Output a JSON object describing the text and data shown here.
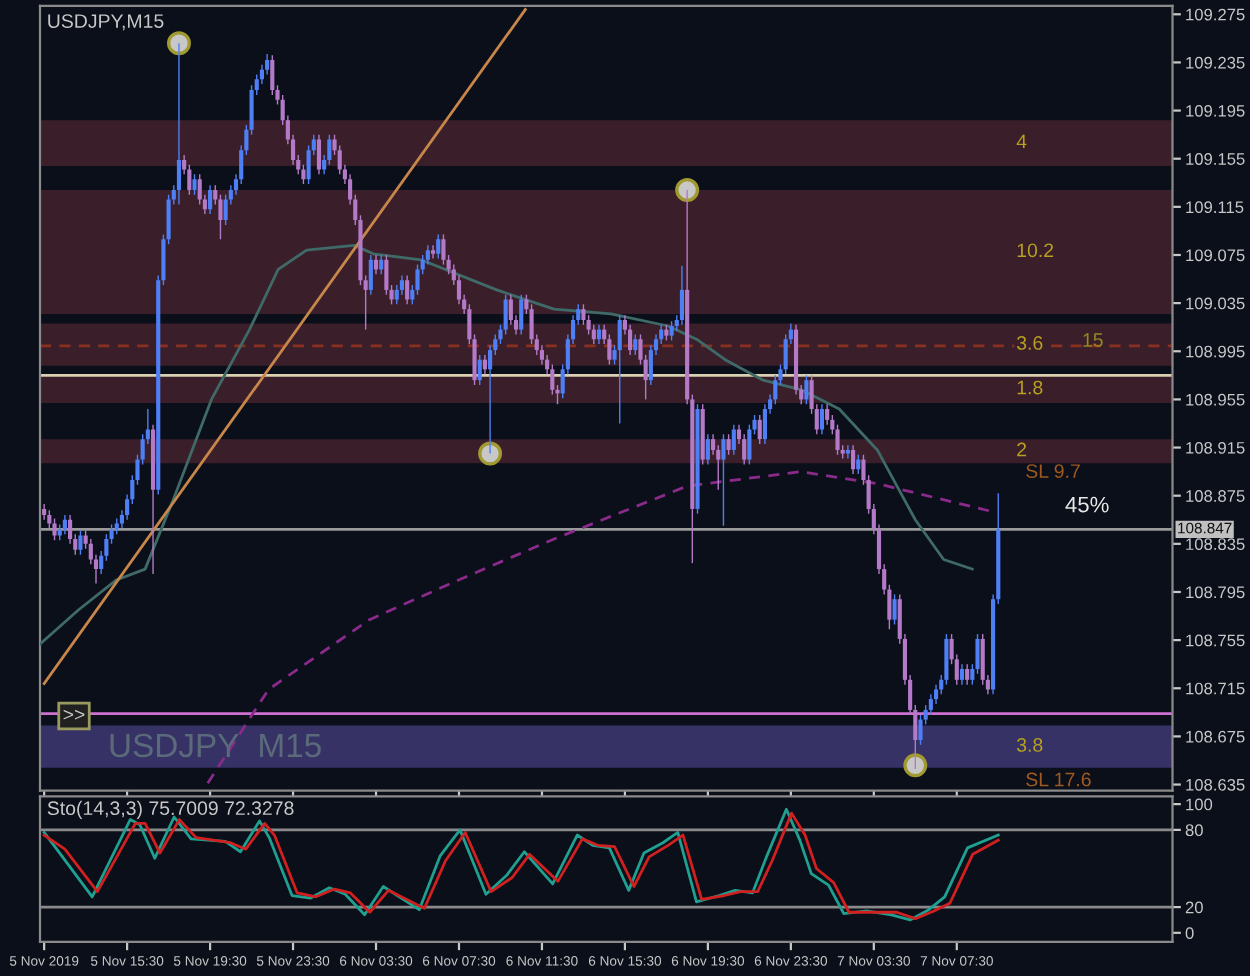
{
  "chart_data": [
    {
      "type": "candlestick",
      "title": "USDJPY,M15",
      "x": [
        "2019-11-05T11:30",
        "2019-11-05T11:45",
        "2019-11-05T12:00",
        "2019-11-05T12:15",
        "2019-11-05T12:30",
        "2019-11-05T12:45",
        "2019-11-05T13:00",
        "2019-11-05T13:15",
        "2019-11-05T13:30",
        "2019-11-05T13:45",
        "2019-11-05T14:00",
        "2019-11-05T14:15",
        "2019-11-05T14:30",
        "2019-11-05T14:45",
        "2019-11-05T15:00",
        "2019-11-05T15:15",
        "2019-11-05T15:30",
        "2019-11-05T15:45",
        "2019-11-05T16:00",
        "2019-11-05T16:15",
        "2019-11-05T16:30",
        "2019-11-05T16:45",
        "2019-11-05T17:00",
        "2019-11-05T17:15",
        "2019-11-05T17:30",
        "2019-11-05T17:45",
        "2019-11-05T18:00",
        "2019-11-05T18:15",
        "2019-11-05T18:30",
        "2019-11-05T18:45",
        "2019-11-05T19:00",
        "2019-11-05T19:15",
        "2019-11-05T19:30",
        "2019-11-05T19:45",
        "2019-11-05T20:00",
        "2019-11-05T20:15",
        "2019-11-05T20:30",
        "2019-11-05T20:45",
        "2019-11-05T21:00",
        "2019-11-05T21:15",
        "2019-11-05T21:30",
        "2019-11-05T21:45",
        "2019-11-05T22:00",
        "2019-11-05T22:15",
        "2019-11-05T22:30",
        "2019-11-05T22:45",
        "2019-11-05T23:00",
        "2019-11-05T23:15",
        "2019-11-05T23:30",
        "2019-11-05T23:45",
        "2019-11-06T00:00",
        "2019-11-06T00:15",
        "2019-11-06T00:30",
        "2019-11-06T00:45",
        "2019-11-06T01:00",
        "2019-11-06T01:15",
        "2019-11-06T01:30",
        "2019-11-06T01:45",
        "2019-11-06T02:00",
        "2019-11-06T02:15",
        "2019-11-06T02:30",
        "2019-11-06T02:45",
        "2019-11-06T03:00",
        "2019-11-06T03:15",
        "2019-11-06T03:30",
        "2019-11-06T03:45",
        "2019-11-06T04:00",
        "2019-11-06T04:15",
        "2019-11-06T04:30",
        "2019-11-06T04:45",
        "2019-11-06T05:00",
        "2019-11-06T05:15",
        "2019-11-06T05:30",
        "2019-11-06T05:45",
        "2019-11-06T06:00",
        "2019-11-06T06:15",
        "2019-11-06T06:30",
        "2019-11-06T06:45",
        "2019-11-06T07:00",
        "2019-11-06T07:15",
        "2019-11-06T07:30",
        "2019-11-06T07:45",
        "2019-11-06T08:00",
        "2019-11-06T08:15",
        "2019-11-06T08:30",
        "2019-11-06T08:45",
        "2019-11-06T09:00",
        "2019-11-06T09:15",
        "2019-11-06T09:30",
        "2019-11-06T09:45",
        "2019-11-06T10:00",
        "2019-11-06T10:15",
        "2019-11-06T10:30",
        "2019-11-06T10:45",
        "2019-11-06T11:00",
        "2019-11-06T11:15",
        "2019-11-06T11:30",
        "2019-11-06T11:45",
        "2019-11-06T12:00",
        "2019-11-06T12:15",
        "2019-11-06T12:30",
        "2019-11-06T12:45",
        "2019-11-06T13:00",
        "2019-11-06T13:15",
        "2019-11-06T13:30",
        "2019-11-06T13:45",
        "2019-11-06T14:00",
        "2019-11-06T14:15",
        "2019-11-06T14:30",
        "2019-11-06T14:45",
        "2019-11-06T15:00",
        "2019-11-06T15:15",
        "2019-11-06T15:30",
        "2019-11-06T15:45",
        "2019-11-06T16:00",
        "2019-11-06T16:15",
        "2019-11-06T16:30",
        "2019-11-06T16:45",
        "2019-11-06T17:00",
        "2019-11-06T17:15",
        "2019-11-06T17:30",
        "2019-11-06T17:45",
        "2019-11-06T18:00",
        "2019-11-06T18:15",
        "2019-11-06T18:30",
        "2019-11-06T18:45",
        "2019-11-06T19:00",
        "2019-11-06T19:15",
        "2019-11-06T19:30",
        "2019-11-06T19:45",
        "2019-11-06T20:00",
        "2019-11-06T20:15",
        "2019-11-06T20:30",
        "2019-11-06T20:45",
        "2019-11-06T21:00",
        "2019-11-06T21:15",
        "2019-11-06T21:30",
        "2019-11-06T21:45",
        "2019-11-06T22:00",
        "2019-11-06T22:15",
        "2019-11-06T22:30",
        "2019-11-06T22:45",
        "2019-11-06T23:00",
        "2019-11-06T23:15",
        "2019-11-06T23:30",
        "2019-11-06T23:45",
        "2019-11-07T00:00",
        "2019-11-07T00:15",
        "2019-11-07T00:30",
        "2019-11-07T00:45",
        "2019-11-07T01:00",
        "2019-11-07T01:15",
        "2019-11-07T01:30",
        "2019-11-07T01:45",
        "2019-11-07T02:00",
        "2019-11-07T02:15",
        "2019-11-07T02:30",
        "2019-11-07T02:45",
        "2019-11-07T03:00",
        "2019-11-07T03:15",
        "2019-11-07T03:30",
        "2019-11-07T03:45",
        "2019-11-07T04:00",
        "2019-11-07T04:15",
        "2019-11-07T04:30",
        "2019-11-07T04:45",
        "2019-11-07T05:00",
        "2019-11-07T05:15",
        "2019-11-07T05:30",
        "2019-11-07T05:45",
        "2019-11-07T06:00",
        "2019-11-07T06:15",
        "2019-11-07T06:30",
        "2019-11-07T06:45",
        "2019-11-07T07:00",
        "2019-11-07T07:15",
        "2019-11-07T07:30",
        "2019-11-07T07:45",
        "2019-11-07T08:00",
        "2019-11-07T08:15",
        "2019-11-07T08:30",
        "2019-11-07T08:45",
        "2019-11-07T09:00",
        "2019-11-07T09:15",
        "2019-11-07T09:30"
      ],
      "colors": [
        "#b47ac8",
        "#b47ac8",
        "#b47ac8",
        "#4f7ff5",
        "#4f7ff5",
        "#b47ac8",
        "#b47ac8",
        "#4f7ff5",
        "#b47ac8",
        "#b47ac8",
        "#b47ac8",
        "#4f7ff5",
        "#4f7ff5",
        "#4f7ff5",
        "#4f7ff5",
        "#4f7ff5",
        "#4f7ff5",
        "#4f7ff5",
        "#4f7ff5",
        "#4f7ff5",
        "#4f7ff5",
        "#b47ac8",
        "#4f7ff5",
        "#4f7ff5",
        "#4f7ff5",
        "#4f7ff5",
        "#4f7ff5",
        "#b47ac8",
        "#b47ac8",
        "#4f7ff5",
        "#b47ac8",
        "#b47ac8",
        "#4f7ff5",
        "#b47ac8",
        "#b47ac8",
        "#4f7ff5",
        "#4f7ff5",
        "#4f7ff5",
        "#4f7ff5",
        "#4f7ff5",
        "#4f7ff5",
        "#4f7ff5",
        "#4f7ff5",
        "#4f7ff5",
        "#b47ac8",
        "#b47ac8",
        "#b47ac8",
        "#b47ac8",
        "#b47ac8",
        "#b47ac8",
        "#b47ac8",
        "#4f7ff5",
        "#4f7ff5",
        "#b47ac8",
        "#4f7ff5",
        "#4f7ff5",
        "#b47ac8",
        "#b47ac8",
        "#b47ac8",
        "#b47ac8",
        "#b47ac8",
        "#b47ac8",
        "#b47ac8",
        "#4f7ff5",
        "#b47ac8",
        "#4f7ff5",
        "#b47ac8",
        "#b47ac8",
        "#4f7ff5",
        "#4f7ff5",
        "#b47ac8",
        "#4f7ff5",
        "#4f7ff5",
        "#4f7ff5",
        "#4f7ff5",
        "#b47ac8",
        "#4f7ff5",
        "#b47ac8",
        "#b47ac8",
        "#b47ac8",
        "#b47ac8",
        "#b47ac8",
        "#b47ac8",
        "#b47ac8",
        "#4f7ff5",
        "#b47ac8",
        "#4f7ff5",
        "#4f7ff5",
        "#4f7ff5",
        "#4f7ff5",
        "#b47ac8",
        "#b47ac8",
        "#4f7ff5",
        "#b47ac8",
        "#b47ac8",
        "#b47ac8",
        "#b47ac8",
        "#b47ac8",
        "#b47ac8",
        "#b47ac8",
        "#4f7ff5",
        "#4f7ff5",
        "#4f7ff5",
        "#4f7ff5",
        "#b47ac8",
        "#b47ac8",
        "#b47ac8",
        "#4f7ff5",
        "#b47ac8",
        "#b47ac8",
        "#4f7ff5",
        "#4f7ff5",
        "#b47ac8",
        "#b47ac8",
        "#4f7ff5",
        "#b47ac8",
        "#b47ac8",
        "#4f7ff5",
        "#4f7ff5",
        "#4f7ff5",
        "#b47ac8",
        "#4f7ff5",
        "#4f7ff5",
        "#4f7ff5",
        "#b47ac8",
        "#b47ac8",
        "#4f7ff5",
        "#b47ac8",
        "#4f7ff5",
        "#b47ac8",
        "#b47ac8",
        "#4f7ff5",
        "#b47ac8",
        "#4f7ff5",
        "#b47ac8",
        "#b47ac8",
        "#4f7ff5",
        "#4f7ff5",
        "#b47ac8",
        "#4f7ff5",
        "#4f7ff5",
        "#4f7ff5",
        "#4f7ff5",
        "#4f7ff5",
        "#4f7ff5",
        "#b47ac8",
        "#b47ac8",
        "#4f7ff5",
        "#b47ac8",
        "#b47ac8",
        "#4f7ff5",
        "#b47ac8",
        "#b47ac8",
        "#b47ac8",
        "#b47ac8",
        "#4f7ff5",
        "#b47ac8",
        "#4f7ff5",
        "#b47ac8",
        "#b47ac8",
        "#b47ac8",
        "#b47ac8",
        "#b47ac8",
        "#b47ac8",
        "#4f7ff5",
        "#b47ac8",
        "#b47ac8",
        "#b47ac8",
        "#b47ac8",
        "#4f7ff5",
        "#4f7ff5",
        "#4f7ff5",
        "#4f7ff5",
        "#4f7ff5",
        "#4f7ff5",
        "#b47ac8",
        "#b47ac8",
        "#4f7ff5",
        "#b47ac8",
        "#4f7ff5",
        "#4f7ff5",
        "#b47ac8",
        "#b47ac8",
        "#4f7ff5",
        "#4f7ff5"
      ],
      "ohlc": [
        [
          108.864,
          108.868,
          108.855,
          108.859
        ],
        [
          108.859,
          108.863,
          108.848,
          108.852
        ],
        [
          108.852,
          108.856,
          108.838,
          108.842
        ],
        [
          108.842,
          108.851,
          108.838,
          108.847
        ],
        [
          108.847,
          108.859,
          108.843,
          108.855
        ],
        [
          108.855,
          108.859,
          108.835,
          108.839
        ],
        [
          108.839,
          108.843,
          108.826,
          108.83
        ],
        [
          108.83,
          108.846,
          108.826,
          108.842
        ],
        [
          108.842,
          108.846,
          108.831,
          108.835
        ],
        [
          108.835,
          108.839,
          108.818,
          108.822
        ],
        [
          108.822,
          108.826,
          108.802,
          108.814
        ],
        [
          108.814,
          108.829,
          108.81,
          108.825
        ],
        [
          108.825,
          108.843,
          108.821,
          108.839
        ],
        [
          108.839,
          108.851,
          108.835,
          108.847
        ],
        [
          108.847,
          108.856,
          108.843,
          108.852
        ],
        [
          108.852,
          108.863,
          108.848,
          108.859
        ],
        [
          108.859,
          108.876,
          108.855,
          108.872
        ],
        [
          108.872,
          108.892,
          108.868,
          108.888
        ],
        [
          108.888,
          108.909,
          108.884,
          108.905
        ],
        [
          108.905,
          108.926,
          108.901,
          108.922
        ],
        [
          108.922,
          108.947,
          108.918,
          108.93
        ],
        [
          108.93,
          108.934,
          108.81,
          108.88
        ],
        [
          108.88,
          109.058,
          108.876,
          109.054
        ],
        [
          109.054,
          109.092,
          109.05,
          109.088
        ],
        [
          109.088,
          109.125,
          109.084,
          109.121
        ],
        [
          109.121,
          109.133,
          109.117,
          109.129
        ],
        [
          109.129,
          109.251,
          109.117,
          109.154
        ],
        [
          109.154,
          109.158,
          109.142,
          109.146
        ],
        [
          109.146,
          109.15,
          109.125,
          109.129
        ],
        [
          109.129,
          109.142,
          109.125,
          109.138
        ],
        [
          109.138,
          109.142,
          109.117,
          109.121
        ],
        [
          109.121,
          109.125,
          109.109,
          109.113
        ],
        [
          109.113,
          109.133,
          109.109,
          109.129
        ],
        [
          109.129,
          109.133,
          109.117,
          109.121
        ],
        [
          109.121,
          109.125,
          109.088,
          109.104
        ],
        [
          109.104,
          109.125,
          109.1,
          109.121
        ],
        [
          109.121,
          109.133,
          109.117,
          109.129
        ],
        [
          109.129,
          109.142,
          109.125,
          109.138
        ],
        [
          109.138,
          109.166,
          109.134,
          109.162
        ],
        [
          109.162,
          109.183,
          109.158,
          109.179
        ],
        [
          109.179,
          109.216,
          109.175,
          109.212
        ],
        [
          109.212,
          109.225,
          109.208,
          109.221
        ],
        [
          109.221,
          109.233,
          109.217,
          109.229
        ],
        [
          109.229,
          109.242,
          109.225,
          109.237
        ],
        [
          109.237,
          109.241,
          109.208,
          109.212
        ],
        [
          109.212,
          109.216,
          109.2,
          109.204
        ],
        [
          109.204,
          109.208,
          109.183,
          109.187
        ],
        [
          109.187,
          109.191,
          109.167,
          109.171
        ],
        [
          109.171,
          109.175,
          109.15,
          109.154
        ],
        [
          109.154,
          109.158,
          109.142,
          109.146
        ],
        [
          109.146,
          109.15,
          109.134,
          109.138
        ],
        [
          109.138,
          109.166,
          109.134,
          109.162
        ],
        [
          109.162,
          109.175,
          109.158,
          109.171
        ],
        [
          109.171,
          109.175,
          109.142,
          109.146
        ],
        [
          109.146,
          109.158,
          109.142,
          109.154
        ],
        [
          109.154,
          109.175,
          109.15,
          109.171
        ],
        [
          109.171,
          109.175,
          109.158,
          109.162
        ],
        [
          109.162,
          109.166,
          109.142,
          109.146
        ],
        [
          109.146,
          109.15,
          109.134,
          109.138
        ],
        [
          109.138,
          109.142,
          109.117,
          109.121
        ],
        [
          109.121,
          109.125,
          109.1,
          109.104
        ],
        [
          109.104,
          109.108,
          109.05,
          109.054
        ],
        [
          109.054,
          109.058,
          109.013,
          109.046
        ],
        [
          109.046,
          109.075,
          109.042,
          109.071
        ],
        [
          109.071,
          109.075,
          109.059,
          109.063
        ],
        [
          109.063,
          109.075,
          109.059,
          109.071
        ],
        [
          109.071,
          109.075,
          109.042,
          109.046
        ],
        [
          109.046,
          109.05,
          109.034,
          109.038
        ],
        [
          109.038,
          109.05,
          109.034,
          109.046
        ],
        [
          109.046,
          109.058,
          109.042,
          109.054
        ],
        [
          109.054,
          109.058,
          109.034,
          109.038
        ],
        [
          109.038,
          109.05,
          109.034,
          109.046
        ],
        [
          109.046,
          109.067,
          109.042,
          109.063
        ],
        [
          109.063,
          109.075,
          109.059,
          109.071
        ],
        [
          109.071,
          109.083,
          109.067,
          109.079
        ],
        [
          109.079,
          109.083,
          109.072,
          109.076
        ],
        [
          109.076,
          109.092,
          109.072,
          109.088
        ],
        [
          109.088,
          109.092,
          109.067,
          109.071
        ],
        [
          109.071,
          109.075,
          109.059,
          109.063
        ],
        [
          109.063,
          109.067,
          109.05,
          109.054
        ],
        [
          109.054,
          109.058,
          109.034,
          109.038
        ],
        [
          109.038,
          109.042,
          109.026,
          109.03
        ],
        [
          109.03,
          109.034,
          109.001,
          109.005
        ],
        [
          109.005,
          109.009,
          108.967,
          108.971
        ],
        [
          108.971,
          108.992,
          108.967,
          108.988
        ],
        [
          108.988,
          108.992,
          108.976,
          108.98
        ],
        [
          108.98,
          109.0,
          108.91,
          108.996
        ],
        [
          108.996,
          109.009,
          108.992,
          109.005
        ],
        [
          109.005,
          109.017,
          109.001,
          109.013
        ],
        [
          109.013,
          109.042,
          109.009,
          109.038
        ],
        [
          109.038,
          109.042,
          109.017,
          109.021
        ],
        [
          109.021,
          109.025,
          109.009,
          109.013
        ],
        [
          109.013,
          109.042,
          109.009,
          109.038
        ],
        [
          109.038,
          109.042,
          109.026,
          109.03
        ],
        [
          109.03,
          109.034,
          109.001,
          109.005
        ],
        [
          109.005,
          109.009,
          108.992,
          108.996
        ],
        [
          108.996,
          109.0,
          108.984,
          108.988
        ],
        [
          108.988,
          108.992,
          108.976,
          108.98
        ],
        [
          108.98,
          108.984,
          108.959,
          108.963
        ],
        [
          108.963,
          108.967,
          108.951,
          108.96
        ],
        [
          108.96,
          108.984,
          108.956,
          108.98
        ],
        [
          108.98,
          109.009,
          108.976,
          109.005
        ],
        [
          109.005,
          109.025,
          109.001,
          109.021
        ],
        [
          109.021,
          109.034,
          109.017,
          109.03
        ],
        [
          109.03,
          109.034,
          109.017,
          109.021
        ],
        [
          109.021,
          109.025,
          109.009,
          109.013
        ],
        [
          109.013,
          109.017,
          109.001,
          109.005
        ],
        [
          109.005,
          109.017,
          109.001,
          109.013
        ],
        [
          109.013,
          109.017,
          109.001,
          109.005
        ],
        [
          109.005,
          109.009,
          108.984,
          108.988
        ],
        [
          108.988,
          109.0,
          108.984,
          108.996
        ],
        [
          108.996,
          109.025,
          108.935,
          109.021
        ],
        [
          109.021,
          109.025,
          109.009,
          109.013
        ],
        [
          109.013,
          109.017,
          108.992,
          108.996
        ],
        [
          108.996,
          109.009,
          108.992,
          109.005
        ],
        [
          109.005,
          109.009,
          108.984,
          108.988
        ],
        [
          108.988,
          108.992,
          108.955,
          108.971
        ],
        [
          108.971,
          109.0,
          108.967,
          108.996
        ],
        [
          108.996,
          109.009,
          108.992,
          109.005
        ],
        [
          109.005,
          109.017,
          109.001,
          109.013
        ],
        [
          109.013,
          109.017,
          109.004,
          109.008
        ],
        [
          109.008,
          109.02,
          109.004,
          109.016
        ],
        [
          109.016,
          109.025,
          109.012,
          109.021
        ],
        [
          109.021,
          109.066,
          109.017,
          109.046
        ],
        [
          109.046,
          109.129,
          108.951,
          108.955
        ],
        [
          108.955,
          108.959,
          108.819,
          108.864
        ],
        [
          108.864,
          108.951,
          108.86,
          108.947
        ],
        [
          108.947,
          108.951,
          108.901,
          108.905
        ],
        [
          108.905,
          108.926,
          108.901,
          108.922
        ],
        [
          108.922,
          108.926,
          108.909,
          108.913
        ],
        [
          108.913,
          108.917,
          108.88,
          108.905
        ],
        [
          108.905,
          108.926,
          108.85,
          108.922
        ],
        [
          108.922,
          108.926,
          108.909,
          108.913
        ],
        [
          108.913,
          108.934,
          108.909,
          108.93
        ],
        [
          108.93,
          108.934,
          108.918,
          108.922
        ],
        [
          108.922,
          108.926,
          108.901,
          108.905
        ],
        [
          108.905,
          108.934,
          108.901,
          108.93
        ],
        [
          108.93,
          108.942,
          108.926,
          108.938
        ],
        [
          108.938,
          108.942,
          108.918,
          108.922
        ],
        [
          108.922,
          108.951,
          108.918,
          108.947
        ],
        [
          108.947,
          108.959,
          108.943,
          108.955
        ],
        [
          108.955,
          108.975,
          108.951,
          108.971
        ],
        [
          108.971,
          108.984,
          108.967,
          108.98
        ],
        [
          108.98,
          109.009,
          108.976,
          109.005
        ],
        [
          109.005,
          109.018,
          109.001,
          109.013
        ],
        [
          109.013,
          109.017,
          108.959,
          108.963
        ],
        [
          108.963,
          108.967,
          108.951,
          108.955
        ],
        [
          108.955,
          108.975,
          108.951,
          108.971
        ],
        [
          108.971,
          108.975,
          108.943,
          108.947
        ],
        [
          108.947,
          108.951,
          108.926,
          108.93
        ],
        [
          108.93,
          108.951,
          108.926,
          108.947
        ],
        [
          108.947,
          108.951,
          108.934,
          108.938
        ],
        [
          108.938,
          108.942,
          108.926,
          108.93
        ],
        [
          108.93,
          108.934,
          108.909,
          108.913
        ],
        [
          108.913,
          108.917,
          108.906,
          108.91
        ],
        [
          108.91,
          108.917,
          108.906,
          108.913
        ],
        [
          108.913,
          108.917,
          108.893,
          108.897
        ],
        [
          108.897,
          108.909,
          108.893,
          108.905
        ],
        [
          108.905,
          108.909,
          108.884,
          108.888
        ],
        [
          108.888,
          108.892,
          108.86,
          108.864
        ],
        [
          108.864,
          108.868,
          108.843,
          108.847
        ],
        [
          108.847,
          108.851,
          108.81,
          108.814
        ],
        [
          108.814,
          108.818,
          108.793,
          108.797
        ],
        [
          108.797,
          108.801,
          108.764,
          108.772
        ],
        [
          108.772,
          108.793,
          108.768,
          108.789
        ],
        [
          108.789,
          108.793,
          108.752,
          108.756
        ],
        [
          108.756,
          108.76,
          108.718,
          108.722
        ],
        [
          108.722,
          108.726,
          108.693,
          108.697
        ],
        [
          108.697,
          108.701,
          108.648,
          108.672
        ],
        [
          108.672,
          108.693,
          108.668,
          108.689
        ],
        [
          108.689,
          108.701,
          108.685,
          108.697
        ],
        [
          108.697,
          108.71,
          108.693,
          108.706
        ],
        [
          108.706,
          108.718,
          108.702,
          108.714
        ],
        [
          108.714,
          108.726,
          108.71,
          108.722
        ],
        [
          108.722,
          108.76,
          108.718,
          108.756
        ],
        [
          108.756,
          108.76,
          108.735,
          108.739
        ],
        [
          108.739,
          108.743,
          108.718,
          108.722
        ],
        [
          108.722,
          108.735,
          108.718,
          108.731
        ],
        [
          108.731,
          108.735,
          108.718,
          108.722
        ],
        [
          108.722,
          108.735,
          108.718,
          108.731
        ],
        [
          108.731,
          108.76,
          108.727,
          108.756
        ],
        [
          108.756,
          108.76,
          108.718,
          108.722
        ],
        [
          108.722,
          108.726,
          108.71,
          108.714
        ],
        [
          108.714,
          108.793,
          108.71,
          108.789
        ],
        [
          108.789,
          108.877,
          108.785,
          108.847
        ]
      ],
      "series": [
        {
          "type": "line",
          "color": "#3f6a68",
          "line_style": "solid",
          "x": [
            "2019-11-05T11:19",
            "2019-11-05T13:09",
            "2019-11-05T14:59",
            "2019-11-05T16:22",
            "2019-11-05T17:44",
            "2019-11-05T19:34",
            "2019-11-05T21:24",
            "2019-11-05T22:47",
            "2019-11-06T00:09",
            "2019-11-06T02:27",
            "2019-11-06T03:22",
            "2019-11-06T05:40",
            "2019-11-06T09:19",
            "2019-11-06T12:05",
            "2019-11-06T14:50",
            "2019-11-06T17:35",
            "2019-11-06T18:57",
            "2019-11-06T20:20",
            "2019-11-06T22:10",
            "2019-11-07T00:00",
            "2019-11-07T01:50",
            "2019-11-07T03:40",
            "2019-11-07T05:30",
            "2019-11-07T06:52",
            "2019-11-07T08:15"
          ],
          "values": [
            108.752,
            108.78,
            108.805,
            108.814,
            108.872,
            108.955,
            109.013,
            109.063,
            109.079,
            109.083,
            109.076,
            109.071,
            109.046,
            109.03,
            109.026,
            109.016,
            109.005,
            108.988,
            108.971,
            108.963,
            108.947,
            108.913,
            108.855,
            108.822,
            108.814
          ]
        },
        {
          "type": "line",
          "color": "#c8874a",
          "line_style": "solid",
          "x": [
            "2019-11-05T11:30",
            "2019-11-06T10:42"
          ],
          "values": [
            108.719,
            109.279
          ]
        },
        {
          "type": "line",
          "color": "#8a2a8a",
          "line_style": "dashed",
          "x": [
            "2019-11-05T19:23",
            "2019-11-05T22:19",
            "2019-11-06T03:11",
            "2019-11-06T07:29",
            "2019-11-06T12:05",
            "2019-11-06T18:30",
            "2019-11-07T00:00",
            "2019-11-07T03:40",
            "2019-11-07T09:10"
          ],
          "values": [
            108.636,
            108.714,
            108.772,
            108.805,
            108.839,
            108.883,
            108.895,
            108.885,
            108.862
          ]
        },
        {
          "type": "scatter",
          "color": "#c8c8c8",
          "marker": "circle",
          "x": [
            "2019-11-05T18:00",
            "2019-11-06T09:00",
            "2019-11-06T18:30",
            "2019-11-07T05:30"
          ],
          "values": [
            109.251,
            108.91,
            109.129,
            108.651
          ]
        }
      ],
      "xlim": [
        "2019-11-05T11:18",
        "2019-11-07T17:54"
      ],
      "xticks": [
        {
          "value": "2019-11-05T11:30",
          "label": null
        },
        {
          "value": "2019-11-05T15:30",
          "label": null
        },
        {
          "value": "2019-11-05T19:30",
          "label": null
        },
        {
          "value": "2019-11-05T23:30",
          "label": null
        },
        {
          "value": "2019-11-06T03:30",
          "label": null
        },
        {
          "value": "2019-11-06T07:30",
          "label": null
        },
        {
          "value": "2019-11-06T11:30",
          "label": null
        },
        {
          "value": "2019-11-06T15:30",
          "label": null
        },
        {
          "value": "2019-11-06T19:30",
          "label": null
        },
        {
          "value": "2019-11-06T23:30",
          "label": null
        },
        {
          "value": "2019-11-07T03:30",
          "label": null
        },
        {
          "value": "2019-11-07T07:30",
          "label": null
        }
      ],
      "ylim": [
        108.63,
        109.282
      ],
      "yticks": [
        109.275,
        109.235,
        109.195,
        109.155,
        109.115,
        109.075,
        109.035,
        108.995,
        108.955,
        108.915,
        108.875,
        108.835,
        108.795,
        108.755,
        108.715,
        108.675,
        108.635
      ],
      "tick_labels": "y",
      "grid": false,
      "bands": [
        {
          "axis": "y",
          "from": 109.149,
          "to": 109.187,
          "label": "4",
          "color": "#3a1f2a"
        },
        {
          "axis": "y",
          "from": 109.026,
          "to": 109.129,
          "label": "10.2",
          "color": "#3a1f2a"
        },
        {
          "axis": "y",
          "from": 108.983,
          "to": 109.018,
          "label": "3.6",
          "color": "#3a1f2a"
        },
        {
          "axis": "y",
          "from": 108.952,
          "to": 108.975,
          "label": "1.8",
          "color": "#3a1f2a"
        },
        {
          "axis": "y",
          "from": 108.902,
          "to": 108.922,
          "label": "2",
          "color": "#3a1f2a"
        },
        {
          "axis": "y",
          "from": 108.649,
          "to": 108.684,
          "label": "3.8",
          "color": "#363266"
        }
      ],
      "ref_lines": [
        {
          "axis": "y",
          "value": 108.847,
          "label": "108.847",
          "color": "#9a9a9a",
          "line_style": "solid"
        },
        {
          "axis": "y",
          "value": 108.694,
          "color": "#d070d0",
          "line_style": "solid"
        },
        {
          "axis": "y",
          "value": 108.9995,
          "color": "#8a3020",
          "line_style": "dashed"
        },
        {
          "axis": "y",
          "value": 108.975,
          "color": "#d8d0b0",
          "line_style": "solid"
        }
      ],
      "annotations": [
        "USDJPY  M15",
        ">>",
        "45%",
        "SL 9.7",
        "SL 17.6",
        "15"
      ]
    },
    {
      "type": "line",
      "title": "Sto(14,3,3) 75.7009 72.3278",
      "series": [
        {
          "color": "#1fa090",
          "x": [
            "2019-11-05T11:30",
            "2019-11-05T12:15",
            "2019-11-05T13:49",
            "2019-11-05T15:39",
            "2019-11-05T16:07",
            "2019-11-05T16:50",
            "2019-11-05T17:46",
            "2019-11-05T18:35",
            "2019-11-05T20:14",
            "2019-11-05T20:58",
            "2019-11-05T21:53",
            "2019-11-05T22:21",
            "2019-11-05T23:27",
            "2019-11-06T00:21",
            "2019-11-06T01:15",
            "2019-11-06T02:01",
            "2019-11-06T02:57",
            "2019-11-06T03:51",
            "2019-11-06T05:35",
            "2019-11-06T06:36",
            "2019-11-06T07:33",
            "2019-11-06T08:48",
            "2019-11-06T09:49",
            "2019-11-06T10:39",
            "2019-11-06T12:01",
            "2019-11-06T13:12",
            "2019-11-06T13:57",
            "2019-11-06T14:45",
            "2019-11-06T15:41",
            "2019-11-06T16:25",
            "2019-11-06T17:20",
            "2019-11-06T18:03",
            "2019-11-06T18:57",
            "2019-11-06T20:03",
            "2019-11-06T20:49",
            "2019-11-06T21:39",
            "2019-11-06T22:21",
            "2019-11-06T23:17",
            "2019-11-06T23:56",
            "2019-11-07T00:29",
            "2019-11-07T01:19",
            "2019-11-07T02:03",
            "2019-11-07T03:09",
            "2019-11-07T04:21",
            "2019-11-07T05:15",
            "2019-11-07T06:09",
            "2019-11-07T06:55",
            "2019-11-07T08:01",
            "2019-11-07T09:30"
          ],
          "values": [
            78,
            62,
            28,
            88,
            84,
            58,
            90,
            73,
            71,
            63,
            87,
            74,
            29,
            27,
            35,
            30,
            14,
            36,
            18,
            60,
            80,
            30,
            45,
            63,
            38,
            76,
            68,
            66,
            33,
            62,
            70,
            78,
            24,
            29,
            33,
            31,
            60,
            96,
            72,
            46,
            37,
            15,
            17,
            14,
            10,
            18,
            28,
            66,
            76
          ]
        },
        {
          "color": "#d02020",
          "x": [
            "2019-11-05T11:30",
            "2019-11-05T12:30",
            "2019-11-05T14:04",
            "2019-11-05T15:54",
            "2019-11-05T16:22",
            "2019-11-05T17:05",
            "2019-11-05T18:01",
            "2019-11-05T18:50",
            "2019-11-05T20:29",
            "2019-11-05T21:13",
            "2019-11-05T22:08",
            "2019-11-05T22:36",
            "2019-11-05T23:42",
            "2019-11-06T00:36",
            "2019-11-06T01:30",
            "2019-11-06T02:16",
            "2019-11-06T03:12",
            "2019-11-06T04:06",
            "2019-11-06T05:50",
            "2019-11-06T06:51",
            "2019-11-06T07:48",
            "2019-11-06T09:03",
            "2019-11-06T10:04",
            "2019-11-06T10:54",
            "2019-11-06T12:16",
            "2019-11-06T13:27",
            "2019-11-06T14:12",
            "2019-11-06T15:00",
            "2019-11-06T15:56",
            "2019-11-06T16:40",
            "2019-11-06T17:35",
            "2019-11-06T18:18",
            "2019-11-06T19:12",
            "2019-11-06T20:18",
            "2019-11-06T21:04",
            "2019-11-06T21:54",
            "2019-11-06T22:36",
            "2019-11-06T23:32",
            "2019-11-07T00:11",
            "2019-11-07T00:44",
            "2019-11-07T01:34",
            "2019-11-07T02:18",
            "2019-11-07T03:24",
            "2019-11-07T04:36",
            "2019-11-07T05:30",
            "2019-11-07T06:24",
            "2019-11-07T07:10",
            "2019-11-07T08:16",
            "2019-11-07T09:30"
          ],
          "values": [
            76,
            65,
            32,
            85,
            85,
            62,
            88,
            74,
            70,
            65,
            85,
            76,
            31,
            28,
            34,
            31,
            16,
            33,
            19,
            56,
            78,
            32,
            43,
            61,
            40,
            73,
            68,
            67,
            36,
            59,
            68,
            76,
            26,
            29,
            32,
            32,
            56,
            93,
            76,
            50,
            39,
            16,
            16,
            16,
            11,
            17,
            23,
            61,
            72
          ]
        }
      ],
      "line_style": "solid",
      "xlim": [
        "2019-11-05T11:18",
        "2019-11-07T17:54"
      ],
      "xticks": [
        {
          "value": "2019-11-05T11:30",
          "label": "5 Nov 2019"
        },
        {
          "value": "2019-11-05T15:30",
          "label": "5 Nov 15:30"
        },
        {
          "value": "2019-11-05T19:30",
          "label": "5 Nov 19:30"
        },
        {
          "value": "2019-11-05T23:30",
          "label": "5 Nov 23:30"
        },
        {
          "value": "2019-11-06T03:30",
          "label": "6 Nov 03:30"
        },
        {
          "value": "2019-11-06T07:30",
          "label": "6 Nov 07:30"
        },
        {
          "value": "2019-11-06T11:30",
          "label": "6 Nov 11:30"
        },
        {
          "value": "2019-11-06T15:30",
          "label": "6 Nov 15:30"
        },
        {
          "value": "2019-11-06T19:30",
          "label": "6 Nov 19:30"
        },
        {
          "value": "2019-11-06T23:30",
          "label": "6 Nov 23:30"
        },
        {
          "value": "2019-11-07T03:30",
          "label": "7 Nov 03:30"
        },
        {
          "value": "2019-11-07T07:30",
          "label": "7 Nov 07:30"
        }
      ],
      "ylim": [
        -7,
        106
      ],
      "yticks": [
        0,
        20,
        80,
        100
      ],
      "grid": false,
      "ref_lines": [
        {
          "axis": "y",
          "value": 80,
          "color": "#8a8a8a"
        },
        {
          "axis": "y",
          "value": 20,
          "color": "#8a8a8a"
        }
      ]
    }
  ]
}
